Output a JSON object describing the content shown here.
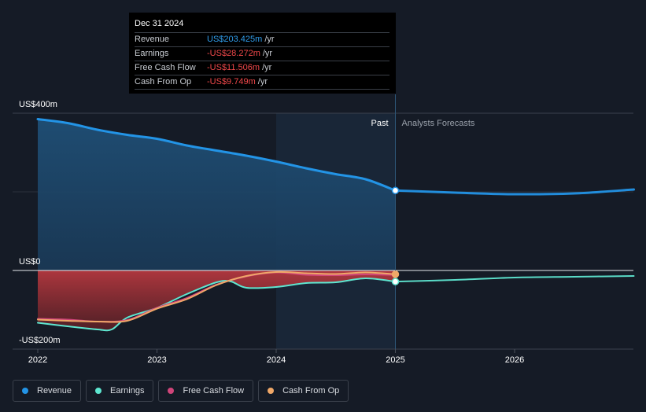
{
  "tooltip": {
    "date": "Dec 31 2024",
    "rows": [
      {
        "label": "Revenue",
        "value": "US$203.425m",
        "unit": "/yr",
        "color": "#2f9be8"
      },
      {
        "label": "Earnings",
        "value": "-US$28.272m",
        "unit": "/yr",
        "color": "#f0484a"
      },
      {
        "label": "Free Cash Flow",
        "value": "-US$11.506m",
        "unit": "/yr",
        "color": "#f0484a"
      },
      {
        "label": "Cash From Op",
        "value": "-US$9.749m",
        "unit": "/yr",
        "color": "#f0484a"
      }
    ]
  },
  "legend": [
    {
      "label": "Revenue",
      "color": "#2394e6"
    },
    {
      "label": "Earnings",
      "color": "#5ee6d0"
    },
    {
      "label": "Free Cash Flow",
      "color": "#d0457a"
    },
    {
      "label": "Cash From Op",
      "color": "#f0a868"
    }
  ],
  "chart_data": {
    "type": "area",
    "y_tick_labels": [
      "US$400m",
      "US$0",
      "-US$200m"
    ],
    "ylim": [
      -200,
      400
    ],
    "x_tick_labels": [
      "2022",
      "2023",
      "2024",
      "2025",
      "2026"
    ],
    "xlim": [
      2021.8,
      2027.0
    ],
    "divider_x": 2025.0,
    "past_label": "Past",
    "forecast_label": "Analysts Forecasts",
    "grid": true,
    "legend_position": "bottom-left",
    "series": [
      {
        "name": "Revenue",
        "color": "#2394e6",
        "points": [
          [
            2022.0,
            385
          ],
          [
            2022.25,
            375
          ],
          [
            2022.5,
            358
          ],
          [
            2022.75,
            345
          ],
          [
            2023.0,
            335
          ],
          [
            2023.25,
            318
          ],
          [
            2023.5,
            305
          ],
          [
            2023.75,
            292
          ],
          [
            2024.0,
            277
          ],
          [
            2024.25,
            260
          ],
          [
            2024.5,
            245
          ],
          [
            2024.75,
            232
          ],
          [
            2025.0,
            203.4
          ]
        ],
        "forecast": [
          [
            2025.0,
            203.4
          ],
          [
            2025.5,
            198
          ],
          [
            2026.0,
            194
          ],
          [
            2026.5,
            196
          ],
          [
            2027.0,
            206
          ]
        ]
      },
      {
        "name": "Earnings",
        "color": "#5ee6d0",
        "points": [
          [
            2022.0,
            -133
          ],
          [
            2022.25,
            -142
          ],
          [
            2022.5,
            -150
          ],
          [
            2022.62,
            -150
          ],
          [
            2022.75,
            -120
          ],
          [
            2023.0,
            -95
          ],
          [
            2023.25,
            -60
          ],
          [
            2023.5,
            -30
          ],
          [
            2023.62,
            -28
          ],
          [
            2023.75,
            -44
          ],
          [
            2024.0,
            -42
          ],
          [
            2024.25,
            -32
          ],
          [
            2024.5,
            -30
          ],
          [
            2024.75,
            -20
          ],
          [
            2025.0,
            -28.3
          ]
        ],
        "forecast": [
          [
            2025.0,
            -28.3
          ],
          [
            2025.5,
            -24
          ],
          [
            2026.0,
            -18
          ],
          [
            2026.5,
            -16
          ],
          [
            2027.0,
            -14
          ]
        ]
      },
      {
        "name": "Free Cash Flow",
        "color": "#d0457a",
        "points": [
          [
            2022.0,
            -123
          ],
          [
            2022.25,
            -125
          ],
          [
            2022.5,
            -130
          ],
          [
            2022.75,
            -126
          ],
          [
            2023.0,
            -95
          ],
          [
            2023.25,
            -70
          ],
          [
            2023.5,
            -36
          ],
          [
            2023.75,
            -15
          ],
          [
            2024.0,
            -5
          ],
          [
            2024.25,
            -11
          ],
          [
            2024.5,
            -12
          ],
          [
            2024.75,
            -10
          ],
          [
            2025.0,
            -11.5
          ]
        ]
      },
      {
        "name": "Cash From Op",
        "color": "#f0a868",
        "points": [
          [
            2022.0,
            -125
          ],
          [
            2022.25,
            -128
          ],
          [
            2022.5,
            -130
          ],
          [
            2022.75,
            -128
          ],
          [
            2023.0,
            -97
          ],
          [
            2023.25,
            -73
          ],
          [
            2023.5,
            -37
          ],
          [
            2023.75,
            -14
          ],
          [
            2024.0,
            -4
          ],
          [
            2024.25,
            -7
          ],
          [
            2024.5,
            -9
          ],
          [
            2024.75,
            -5
          ],
          [
            2025.0,
            -9.7
          ]
        ]
      }
    ]
  }
}
